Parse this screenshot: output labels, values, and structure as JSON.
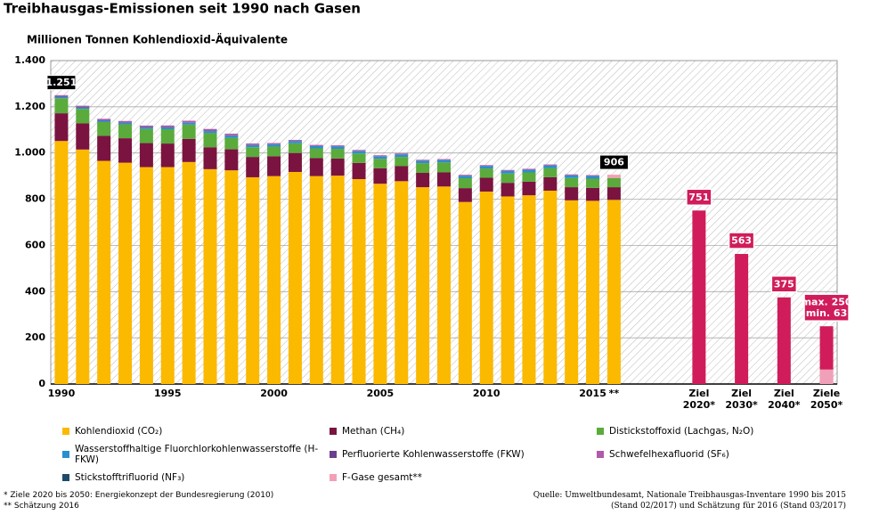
{
  "chart_data": {
    "type": "bar",
    "stacked": true,
    "title": "Treibhausgas-Emissionen seit 1990 nach Gasen",
    "subtitle": "Millionen Tonnen Kohlendioxid-Äquivalente",
    "categories": [
      "1990",
      null,
      null,
      null,
      null,
      "1995",
      null,
      null,
      null,
      null,
      "2000",
      null,
      null,
      null,
      null,
      "2005",
      null,
      null,
      null,
      null,
      "2010",
      null,
      null,
      null,
      null,
      "2015",
      "**",
      null,
      null,
      null,
      "Ziel 2020*",
      null,
      "Ziel 2030*",
      null,
      "Ziel 2040*",
      null,
      "Ziele 2050*"
    ],
    "ylim": [
      0,
      1400
    ],
    "yticks": [
      0,
      200,
      400,
      600,
      800,
      {
        "value": 1000,
        "label": "1.000"
      },
      {
        "value": 1200,
        "label": "1.200"
      },
      {
        "value": 1400,
        "label": "1.400"
      }
    ],
    "grid": true,
    "series": [
      {
        "name": "Kohlendioxid (CO₂)",
        "color": "#fbb900",
        "values": [
          1052,
          1015,
          966,
          958,
          939,
          939,
          961,
          930,
          925,
          895,
          900,
          918,
          900,
          902,
          887,
          867,
          878,
          852,
          855,
          788,
          833,
          812,
          817,
          837,
          795,
          793,
          797,
          null,
          null,
          null,
          null,
          null,
          null,
          null,
          null,
          null,
          null
        ]
      },
      {
        "name": "Methan (CH₄)",
        "color": "#7b1340",
        "values": [
          120,
          113,
          108,
          106,
          104,
          102,
          100,
          95,
          91,
          88,
          86,
          82,
          78,
          74,
          70,
          67,
          65,
          62,
          61,
          60,
          60,
          59,
          59,
          58,
          57,
          56,
          55,
          null,
          null,
          null,
          null,
          null,
          null,
          null,
          null,
          null,
          null
        ]
      },
      {
        "name": "Distickstoffoxid (Lachgas, N₂O)",
        "color": "#5aab3c",
        "values": [
          65,
          63,
          60,
          60,
          61,
          62,
          62,
          61,
          50,
          42,
          42,
          42,
          42,
          42,
          41,
          41,
          40,
          42,
          43,
          43,
          40,
          40,
          40,
          40,
          40,
          40,
          40,
          null,
          null,
          null,
          null,
          null,
          null,
          null,
          null,
          null,
          null
        ]
      },
      {
        "name": "Wasserstoffhaltige Fluorchlorkohlenwasserstoffe (H-FKW)",
        "color": "#2a8fcf",
        "values": [
          6,
          6,
          6,
          7,
          7,
          8,
          8,
          9,
          9,
          9,
          9,
          9,
          10,
          10,
          10,
          10,
          10,
          10,
          10,
          10,
          10,
          11,
          11,
          11,
          11,
          11,
          null,
          null,
          null,
          null,
          null,
          null,
          null,
          null,
          null,
          null,
          null
        ]
      },
      {
        "name": "Perfluorierte Kohlenwasserstoffe (FKW)",
        "color": "#6a3f8f",
        "values": [
          3,
          3,
          3,
          2.5,
          2,
          2,
          2,
          2,
          2,
          1,
          1,
          1,
          1,
          1,
          1,
          1,
          1,
          0.5,
          0.5,
          0.5,
          0.5,
          0.4,
          0.4,
          0.3,
          0.3,
          0.3,
          null,
          null,
          null,
          null,
          null,
          null,
          null,
          null,
          null,
          null,
          null
        ]
      },
      {
        "name": "Schwefelhexafluorid (SF₆)",
        "color": "#b05aa8",
        "values": [
          4.4,
          4.5,
          4.8,
          5,
          5.5,
          6,
          6.5,
          7,
          6.5,
          6,
          5,
          4.5,
          4,
          4,
          4,
          4,
          4,
          4,
          4,
          4,
          4,
          4,
          4,
          4,
          4,
          4,
          null,
          null,
          null,
          null,
          null,
          null,
          null,
          null,
          null,
          null,
          null
        ]
      },
      {
        "name": "Stickstofftrifluorid (NF₃)",
        "color": "#1e4b6b",
        "values": [
          0.1,
          0.1,
          0.1,
          0.1,
          0.1,
          0.1,
          0.1,
          0.1,
          0.1,
          0.1,
          0.1,
          0.1,
          0.1,
          0.1,
          0.1,
          0.1,
          0.1,
          0.1,
          0.1,
          0.1,
          0.1,
          0.1,
          0.1,
          0.1,
          0.1,
          0.1,
          null,
          null,
          null,
          null,
          null,
          null,
          null,
          null,
          null,
          null,
          null
        ]
      },
      {
        "name": "F-Gase gesamt**",
        "color": "#f4a0b4",
        "values": [
          null,
          null,
          null,
          null,
          null,
          null,
          null,
          null,
          null,
          null,
          null,
          null,
          null,
          null,
          null,
          null,
          null,
          null,
          null,
          null,
          null,
          null,
          null,
          null,
          null,
          null,
          14,
          null,
          null,
          null,
          null,
          null,
          null,
          null,
          null,
          null,
          null
        ]
      }
    ],
    "totals": {
      "values": [
        1251,
        null,
        null,
        null,
        null,
        null,
        null,
        null,
        null,
        null,
        null,
        null,
        null,
        null,
        null,
        null,
        null,
        null,
        null,
        null,
        null,
        null,
        null,
        null,
        null,
        null,
        906,
        null,
        null,
        null,
        null,
        null,
        null,
        null,
        null,
        null,
        null
      ],
      "value_labels": [
        "1.251",
        null,
        null,
        null,
        null,
        null,
        null,
        null,
        null,
        null,
        null,
        null,
        null,
        null,
        null,
        null,
        null,
        null,
        null,
        null,
        null,
        null,
        null,
        null,
        null,
        null,
        "906",
        null,
        null,
        null,
        null,
        null,
        null,
        null,
        null,
        null,
        null
      ]
    },
    "targets": {
      "color": "#d01c5b",
      "values": [
        null,
        null,
        null,
        null,
        null,
        null,
        null,
        null,
        null,
        null,
        null,
        null,
        null,
        null,
        null,
        null,
        null,
        null,
        null,
        null,
        null,
        null,
        null,
        null,
        null,
        null,
        null,
        null,
        null,
        null,
        751,
        null,
        563,
        null,
        375,
        null,
        250
      ],
      "value_labels": [
        null,
        null,
        null,
        null,
        null,
        null,
        null,
        null,
        null,
        null,
        null,
        null,
        null,
        null,
        null,
        null,
        null,
        null,
        null,
        null,
        null,
        null,
        null,
        null,
        null,
        null,
        null,
        null,
        null,
        null,
        "751",
        null,
        "563",
        null,
        "375",
        null,
        "max. 250"
      ]
    },
    "target_min": {
      "color": "#f0a0b8",
      "values": [
        null,
        null,
        null,
        null,
        null,
        null,
        null,
        null,
        null,
        null,
        null,
        null,
        null,
        null,
        null,
        null,
        null,
        null,
        null,
        null,
        null,
        null,
        null,
        null,
        null,
        null,
        null,
        null,
        null,
        null,
        null,
        null,
        null,
        null,
        null,
        null,
        63
      ],
      "value_labels": [
        null,
        null,
        null,
        null,
        null,
        null,
        null,
        null,
        null,
        null,
        null,
        null,
        null,
        null,
        null,
        null,
        null,
        null,
        null,
        null,
        null,
        null,
        null,
        null,
        null,
        null,
        null,
        null,
        null,
        null,
        null,
        null,
        null,
        null,
        null,
        null,
        "min. 63"
      ]
    },
    "footnotes": [
      "* Ziele 2020 bis 2050: Energiekonzept der Bundesregierung (2010)",
      "** Schätzung 2016"
    ],
    "source": [
      "Quelle: Umweltbundesamt, Nationale Treibhausgas-Inventare 1990 bis 2015",
      "(Stand 02/2017) und Schätzung für 2016 (Stand 03/2017)"
    ]
  }
}
